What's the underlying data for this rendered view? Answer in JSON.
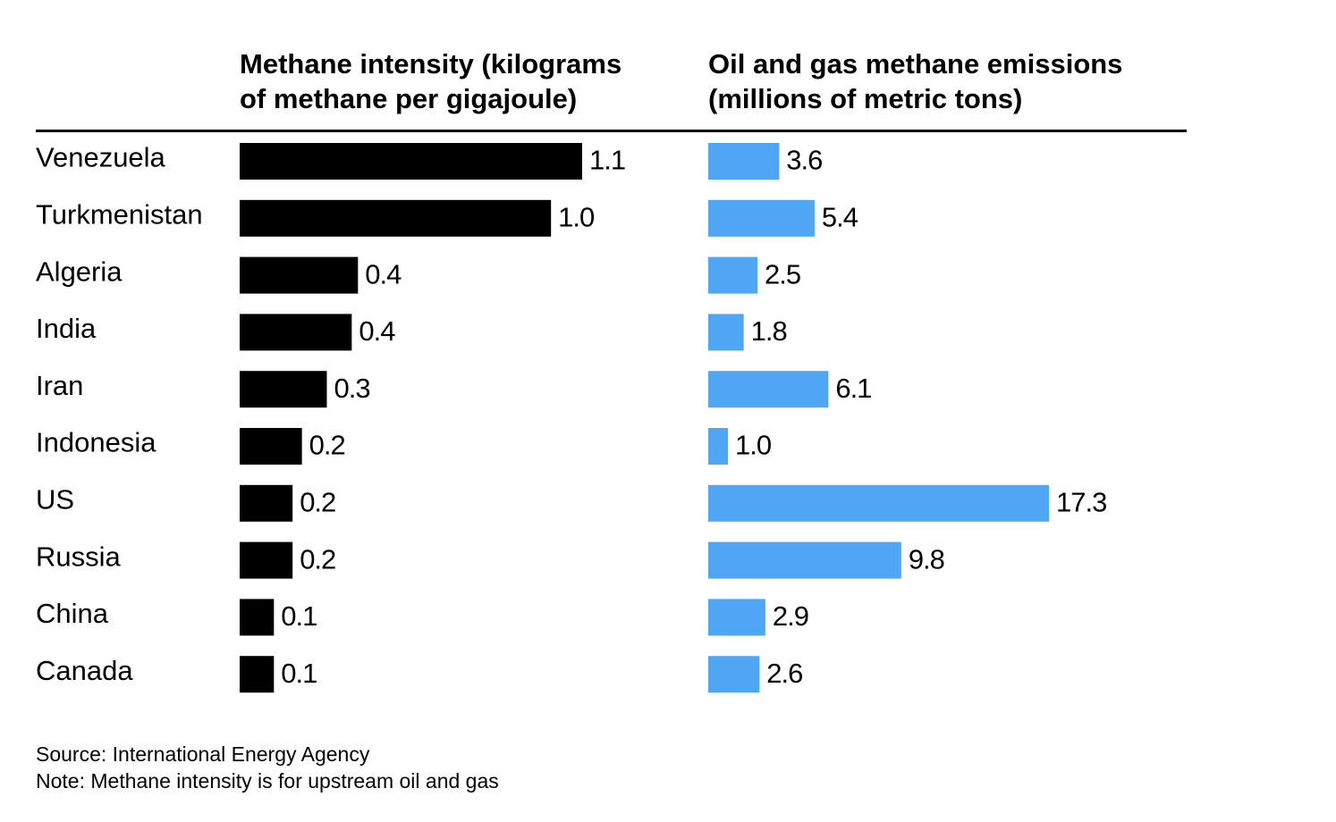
{
  "chart_data": [
    {
      "type": "bar",
      "orientation": "horizontal",
      "title_lines": [
        "Methane intensity (kilograms",
        "of methane per gigajoule)"
      ],
      "categories": [
        "Venezuela",
        "Turkmenistan",
        "Algeria",
        "India",
        "Iran",
        "Indonesia",
        "US",
        "Russia",
        "China",
        "Canada"
      ],
      "values": [
        1.1,
        1.0,
        0.4,
        0.4,
        0.3,
        0.2,
        0.2,
        0.2,
        0.1,
        0.1
      ],
      "labels": [
        "1.1",
        "1.0",
        "0.4",
        "0.4",
        "0.3",
        "0.2",
        "0.2",
        "0.2",
        "0.1",
        "0.1"
      ],
      "bar_values": [
        1.1,
        1.0,
        0.38,
        0.36,
        0.28,
        0.2,
        0.17,
        0.17,
        0.11,
        0.11
      ],
      "xlim": [
        0,
        1.1
      ],
      "color": "#000000"
    },
    {
      "type": "bar",
      "orientation": "horizontal",
      "title_lines": [
        "Oil and gas methane emissions",
        "(millions of metric tons)"
      ],
      "categories": [
        "Venezuela",
        "Turkmenistan",
        "Algeria",
        "India",
        "Iran",
        "Indonesia",
        "US",
        "Russia",
        "China",
        "Canada"
      ],
      "values": [
        3.6,
        5.4,
        2.5,
        1.8,
        6.1,
        1.0,
        17.3,
        9.8,
        2.9,
        2.6
      ],
      "labels": [
        "3.6",
        "5.4",
        "2.5",
        "1.8",
        "6.1",
        "1.0",
        "17.3",
        "9.8",
        "2.9",
        "2.6"
      ],
      "xlim": [
        0,
        17.3
      ],
      "color": "#4ea6f5"
    }
  ],
  "footer": {
    "source": "Source: International Energy Agency",
    "note": "Note: Methane intensity is for upstream oil and gas"
  }
}
